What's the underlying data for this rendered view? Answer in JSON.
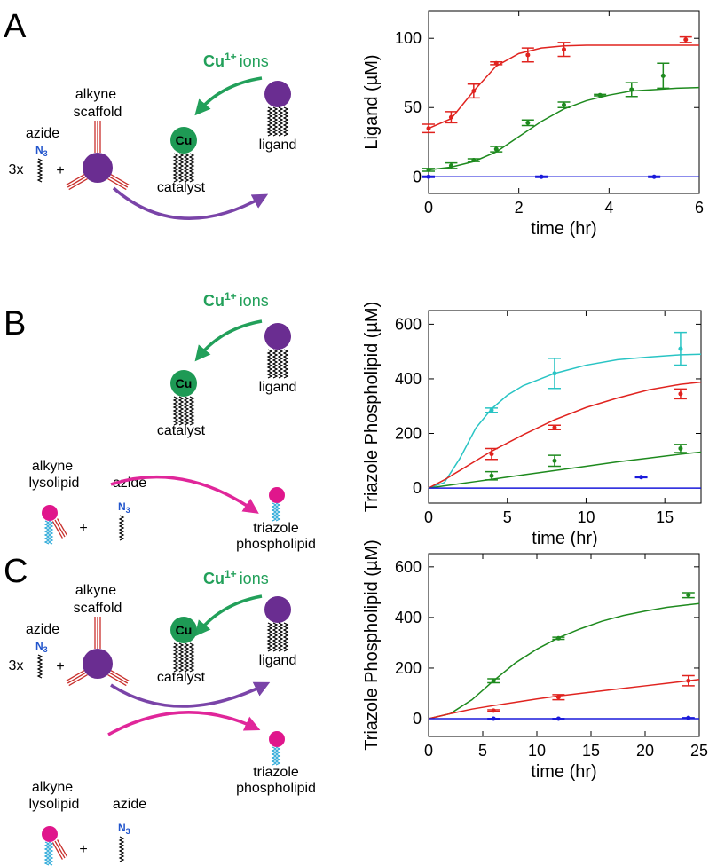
{
  "panel_labels": [
    "A",
    "B",
    "C"
  ],
  "diagrams": [
    {
      "ion": {
        "element": "Cu",
        "charge": "1+",
        "word": "ions"
      },
      "catalyst_symbol": "Cu",
      "catalyst": "catalyst",
      "ligand": "ligand",
      "scaffold_reaction": {
        "azide": "azide",
        "azide_formula": {
          "element": "N",
          "subscript": "3"
        },
        "multiplier": "3x",
        "plus": "+",
        "alkyne": [
          "alkyne",
          "scaffold"
        ]
      }
    },
    {
      "ion": {
        "element": "Cu",
        "charge": "1+",
        "word": "ions"
      },
      "catalyst_symbol": "Cu",
      "catalyst": "catalyst",
      "ligand": "ligand",
      "lipid_reaction": {
        "alkyne": [
          "alkyne",
          "lysolipid"
        ],
        "plus": "+",
        "azide": "azide",
        "azide_formula": {
          "element": "N",
          "subscript": "3"
        },
        "product": [
          "triazole",
          "phospholipid"
        ]
      }
    },
    {
      "ion": {
        "element": "Cu",
        "charge": "1+",
        "word": "ions"
      },
      "catalyst_symbol": "Cu",
      "catalyst": "catalyst",
      "ligand": "ligand",
      "scaffold_reaction": {
        "azide": "azide",
        "azide_formula": {
          "element": "N",
          "subscript": "3"
        },
        "multiplier": "3x",
        "plus": "+",
        "alkyne": [
          "alkyne",
          "scaffold"
        ]
      },
      "lipid_reaction": {
        "alkyne": [
          "alkyne",
          "lysolipid"
        ],
        "plus": "+",
        "azide": "azide",
        "azide_formula": {
          "element": "N",
          "subscript": "3"
        },
        "product": [
          "triazole",
          "phospholipid"
        ]
      }
    }
  ],
  "chart_data": [
    {
      "type": "scatter",
      "xlabel": "time (hr)",
      "ylabel": "Ligand (µM)",
      "xlim": [
        0,
        6
      ],
      "ylim": [
        -12,
        120
      ],
      "xticks": [
        0,
        2,
        4,
        6
      ],
      "yticks": [
        0,
        50,
        100
      ],
      "series": [
        {
          "color": "#e0231f",
          "x": [
            0,
            0.5,
            1,
            1.5,
            2.2,
            3,
            5.7
          ],
          "values": [
            35,
            43,
            62,
            82,
            88,
            92,
            99
          ],
          "errors": [
            3,
            4,
            5,
            1,
            5,
            5,
            2
          ]
        },
        {
          "color": "#1e8a1e",
          "x": [
            0,
            0.5,
            1,
            1.5,
            2.2,
            3,
            3.8,
            4.5,
            5.2
          ],
          "values": [
            5,
            8,
            12,
            20,
            39,
            52,
            59,
            63,
            73
          ],
          "errors": [
            1,
            2,
            1,
            2,
            2,
            2,
            0.5,
            5,
            9
          ]
        },
        {
          "color": "#1a1adb",
          "x": [
            0,
            2.5,
            5
          ],
          "values": [
            0,
            0,
            0
          ],
          "errors": [
            0.5,
            0.5,
            0.5
          ]
        }
      ],
      "fits": [
        {
          "color": "#e0231f",
          "x": [
            0,
            0.5,
            1,
            1.5,
            2,
            2.5,
            3,
            3.5,
            4,
            4.5,
            5,
            5.5,
            6
          ],
          "values": [
            35,
            42,
            62,
            80,
            89,
            93,
            94.5,
            95,
            95,
            95,
            95,
            95,
            95
          ]
        },
        {
          "color": "#1e8a1e",
          "x": [
            0,
            0.5,
            1,
            1.5,
            2,
            2.5,
            3,
            3.5,
            4,
            4.5,
            5,
            5.5,
            6
          ],
          "values": [
            5,
            7,
            11,
            18,
            29,
            40,
            49,
            55,
            59,
            62,
            63,
            64,
            64.5
          ]
        },
        {
          "color": "#1a1adb",
          "x": [
            0,
            6
          ],
          "values": [
            0,
            0
          ]
        }
      ]
    },
    {
      "type": "scatter",
      "xlabel": "time (hr)",
      "ylabel": "Triazole Phospholipid (µM)",
      "xlim": [
        0,
        17.3
      ],
      "ylim": [
        -55,
        650
      ],
      "xticks": [
        0,
        5,
        10,
        15
      ],
      "yticks": [
        0,
        200,
        400,
        600
      ],
      "series": [
        {
          "color": "#29c4c4",
          "x": [
            4,
            8,
            16
          ],
          "values": [
            285,
            420,
            510
          ],
          "errors": [
            8,
            55,
            60
          ]
        },
        {
          "color": "#e0231f",
          "x": [
            4,
            8,
            16
          ],
          "values": [
            125,
            222,
            345
          ],
          "errors": [
            20,
            8,
            18
          ]
        },
        {
          "color": "#1e8a1e",
          "x": [
            4,
            8,
            16
          ],
          "values": [
            45,
            100,
            145
          ],
          "errors": [
            15,
            20,
            15
          ]
        },
        {
          "color": "#1a1adb",
          "x": [
            13.5
          ],
          "values": [
            40
          ],
          "errors": [
            2
          ]
        }
      ],
      "fits": [
        {
          "color": "#29c4c4",
          "x": [
            0,
            1,
            2,
            3,
            4,
            5,
            6,
            8,
            10,
            12,
            14,
            16,
            17.3
          ],
          "values": [
            0,
            20,
            110,
            220,
            290,
            340,
            375,
            420,
            450,
            470,
            480,
            488,
            490
          ]
        },
        {
          "color": "#e0231f",
          "x": [
            0,
            1,
            2,
            3,
            4,
            5,
            6,
            8,
            10,
            12,
            14,
            16,
            17.3
          ],
          "values": [
            0,
            30,
            65,
            100,
            135,
            165,
            195,
            250,
            295,
            330,
            360,
            380,
            388
          ]
        },
        {
          "color": "#1e8a1e",
          "x": [
            0,
            1,
            2,
            3,
            4,
            5,
            6,
            8,
            10,
            12,
            14,
            16,
            17.3
          ],
          "values": [
            0,
            8,
            16,
            24,
            32,
            40,
            48,
            64,
            80,
            96,
            110,
            124,
            132
          ]
        },
        {
          "color": "#1a1adb",
          "x": [
            0,
            17.3
          ],
          "values": [
            0,
            0
          ]
        }
      ]
    },
    {
      "type": "scatter",
      "xlabel": "time (hr)",
      "ylabel": "Triazole Phospholipid (µM)",
      "xlim": [
        0,
        25
      ],
      "ylim": [
        -70,
        652
      ],
      "xticks": [
        0,
        5,
        10,
        15,
        20,
        25
      ],
      "yticks": [
        0,
        200,
        400,
        600
      ],
      "series": [
        {
          "color": "#1e8a1e",
          "x": [
            6,
            12,
            24
          ],
          "values": [
            150,
            318,
            488
          ],
          "errors": [
            8,
            4,
            10
          ]
        },
        {
          "color": "#e0231f",
          "x": [
            6,
            12,
            24
          ],
          "values": [
            32,
            85,
            150
          ],
          "errors": [
            3,
            10,
            20
          ]
        },
        {
          "color": "#1a1adb",
          "x": [
            6,
            12,
            24
          ],
          "values": [
            0,
            0,
            3
          ],
          "errors": [
            1,
            1,
            1
          ]
        }
      ],
      "fits": [
        {
          "color": "#1e8a1e",
          "x": [
            0,
            2,
            4,
            6,
            8,
            10,
            12,
            14,
            16,
            18,
            20,
            22,
            24,
            25
          ],
          "values": [
            0,
            20,
            75,
            150,
            220,
            275,
            320,
            355,
            385,
            408,
            425,
            440,
            450,
            455
          ]
        },
        {
          "color": "#e0231f",
          "x": [
            0,
            2,
            4,
            6,
            8,
            10,
            12,
            14,
            16,
            18,
            20,
            22,
            24,
            25
          ],
          "values": [
            0,
            20,
            38,
            52,
            65,
            78,
            90,
            100,
            110,
            120,
            130,
            140,
            150,
            155
          ]
        },
        {
          "color": "#1a1adb",
          "x": [
            0,
            25
          ],
          "values": [
            0,
            0
          ]
        }
      ]
    }
  ]
}
